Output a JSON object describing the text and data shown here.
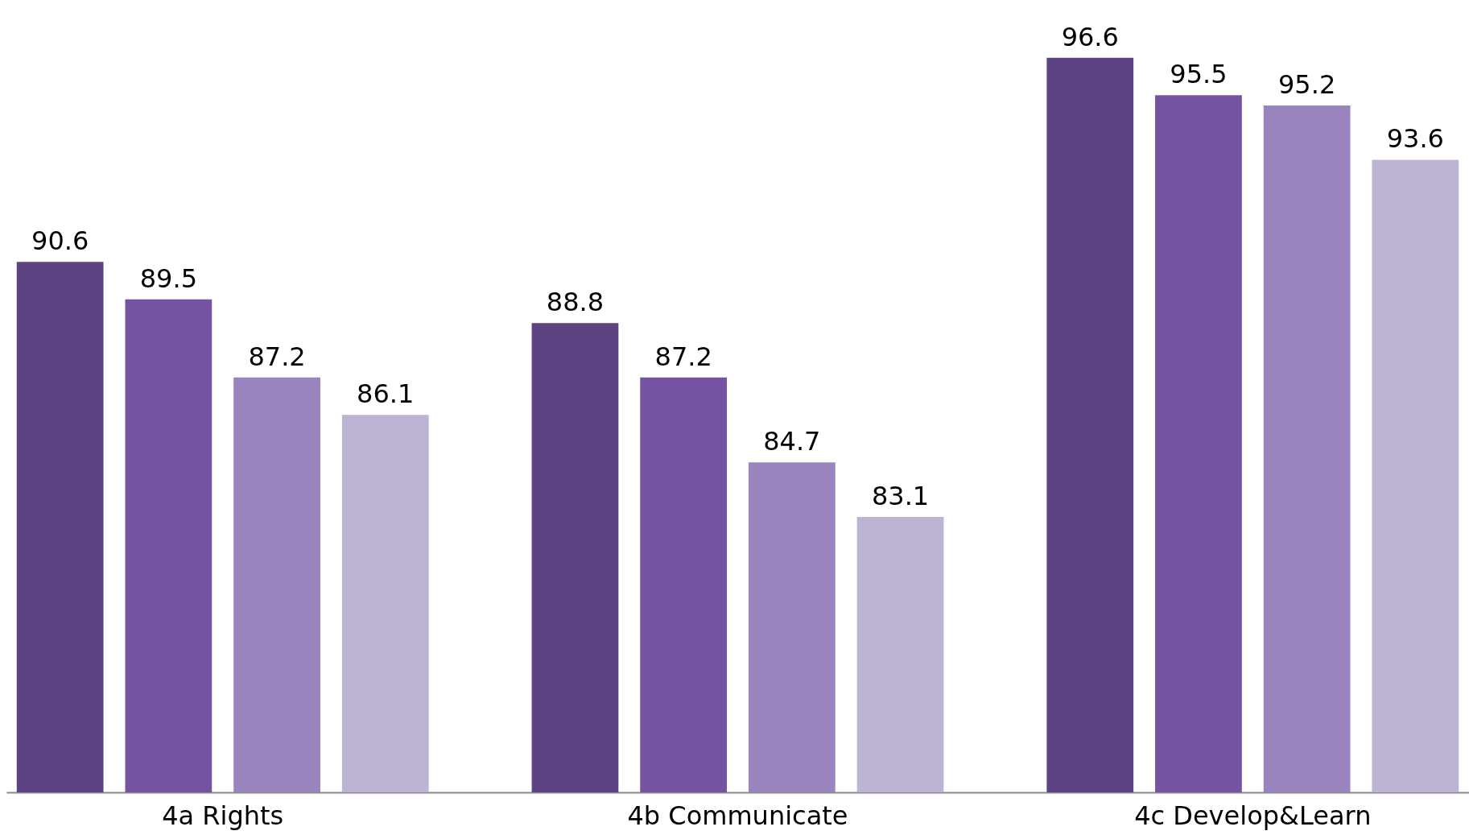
{
  "chart_data": {
    "type": "bar",
    "categories": [
      "4a Rights",
      "4b Communicate",
      "4c Develop&Learn"
    ],
    "series": [
      {
        "color": "#5e4383",
        "values": [
          90.6,
          88.8,
          96.6
        ]
      },
      {
        "color": "#7453a0",
        "values": [
          89.5,
          87.2,
          95.5
        ]
      },
      {
        "color": "#9a84be",
        "values": [
          87.2,
          84.7,
          95.2
        ]
      },
      {
        "color": "#bdb3d3",
        "values": [
          86.1,
          83.1,
          93.6
        ]
      }
    ],
    "ylim": [
      75,
      98.3
    ],
    "data_labels": true,
    "grid": false,
    "legend": false,
    "tick_labels": "x"
  }
}
